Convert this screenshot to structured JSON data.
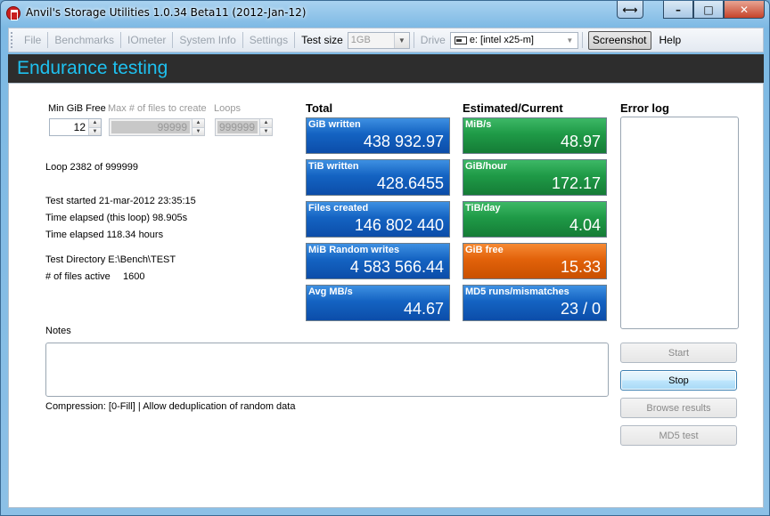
{
  "window": {
    "title": "Anvil's Storage Utilities 1.0.34 Beta11 (2012-Jan-12)",
    "controls": {
      "restore": "⟷",
      "minimize": "–",
      "maximize": "□",
      "close": "✕"
    }
  },
  "toolbar": {
    "file": "File",
    "benchmarks": "Benchmarks",
    "iometer": "IOmeter",
    "system_info": "System Info",
    "settings": "Settings",
    "test_size_label": "Test size",
    "test_size_value": "1GB",
    "drive_label": "Drive",
    "drive_value": "e: [intel x25-m]",
    "screenshot": "Screenshot",
    "help": "Help"
  },
  "header": {
    "title": "Endurance testing"
  },
  "params": {
    "min_gib_free_label": "Min GiB Free",
    "min_gib_free_value": "12",
    "max_files_label": "Max # of files to create",
    "max_files_value": "99999",
    "loops_label": "Loops",
    "loops_value": "999999"
  },
  "status": {
    "loop": "Loop 2382 of 999999",
    "test_started": "Test started 21-mar-2012 23:35:15",
    "elapsed_loop": "Time elapsed (this loop) 98.905s",
    "elapsed_total": "Time elapsed 118.34 hours",
    "test_directory": "Test Directory E:\\Bench\\TEST",
    "files_active_label": "# of files active",
    "files_active_value": "1600"
  },
  "total": {
    "heading": "Total",
    "tiles": [
      {
        "label": "GiB written",
        "value": "438 932.97"
      },
      {
        "label": "TiB written",
        "value": "428.6455"
      },
      {
        "label": "Files created",
        "value": "146 802 440"
      },
      {
        "label": "MiB Random writes",
        "value": "4 583 566.44"
      },
      {
        "label": "Avg MB/s",
        "value": "44.67"
      }
    ]
  },
  "estimated": {
    "heading": "Estimated/Current",
    "tiles": [
      {
        "label": "MiB/s",
        "value": "48.97"
      },
      {
        "label": "GiB/hour",
        "value": "172.17"
      },
      {
        "label": "TiB/day",
        "value": "4.04"
      },
      {
        "label": "GiB free",
        "value": "15.33"
      },
      {
        "label": "MD5 runs/mismatches",
        "value": "23 / 0"
      }
    ]
  },
  "error_log": {
    "heading": "Error log"
  },
  "notes": {
    "label": "Notes",
    "compression": "Compression: [0-Fill] | Allow deduplication of random data"
  },
  "buttons": {
    "start": "Start",
    "stop": "Stop",
    "browse": "Browse results",
    "md5": "MD5 test"
  },
  "colors": {
    "header_bg": "#2d2d2d",
    "header_text": "#1ec0ef",
    "tile_blue": "#1463c2",
    "tile_green": "#1f9a47",
    "tile_orange": "#e2620a"
  }
}
